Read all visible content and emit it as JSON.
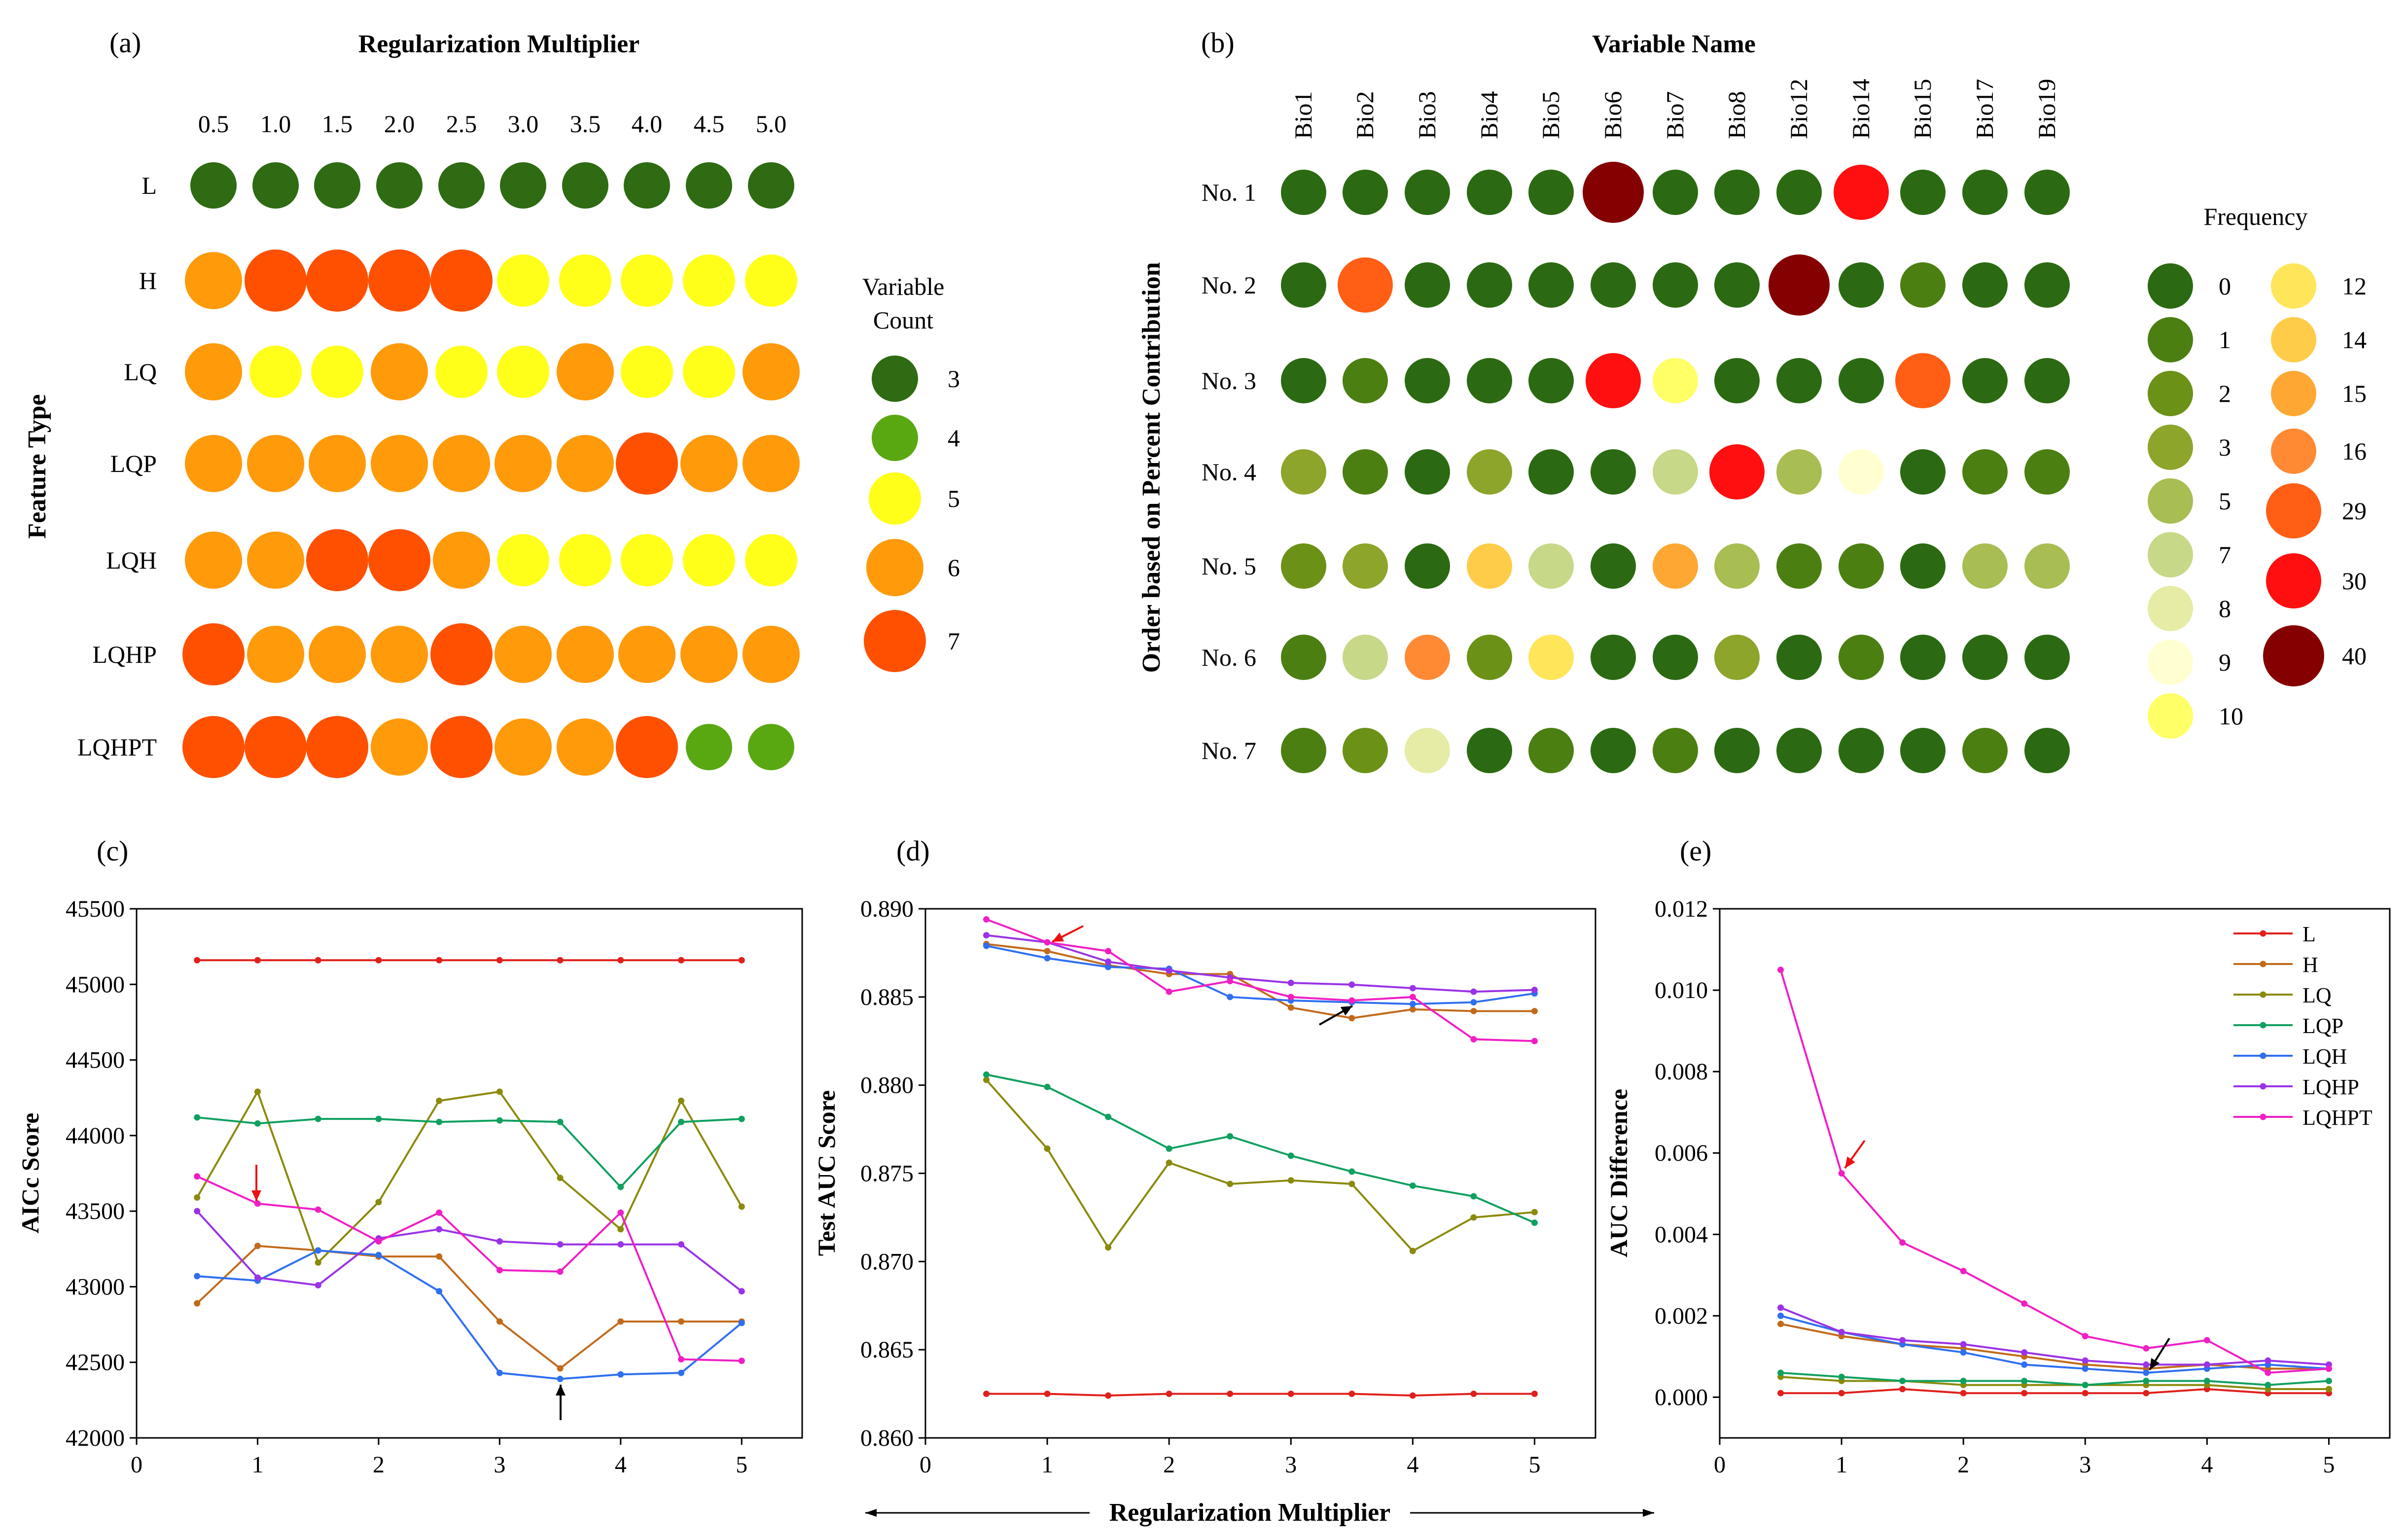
{
  "colors": {
    "count": {
      "3": "#2e6b12",
      "4": "#59a812",
      "5": "#ffff1a",
      "6": "#ff9a0a",
      "7": "#ff5000"
    },
    "freq": {
      "0": "#2b6a12",
      "1": "#4c7f12",
      "2": "#6b9117",
      "3": "#8ca52a",
      "5": "#a8bd52",
      "7": "#c7d888",
      "8": "#e6eba6",
      "9": "#ffffd2",
      "10": "#ffff66",
      "12": "#ffe55a",
      "14": "#ffcc4a",
      "15": "#ffa733",
      "16": "#ff8a33",
      "29": "#ff5e14",
      "30": "#ff0f0f",
      "40": "#850000"
    },
    "series": {
      "L": "#e0201c",
      "H": "#c26a1b",
      "LQ": "#8a8a0c",
      "LQP": "#10a060",
      "LQH": "#2f6ff0",
      "LQHP": "#9a33e6",
      "LQHPT": "#f01fc4"
    },
    "arrow_red": "#ee1111",
    "arrow_black": "#000000"
  },
  "chart_data": [
    {
      "panel": "(a)",
      "type": "bubble-matrix",
      "title": "Regularization Multiplier",
      "ylabel": "Feature Type",
      "columns": [
        "0.5",
        "1.0",
        "1.5",
        "2.0",
        "2.5",
        "3.0",
        "3.5",
        "4.0",
        "4.5",
        "5.0"
      ],
      "rows": [
        "L",
        "H",
        "LQ",
        "LQP",
        "LQH",
        "LQHP",
        "LQHPT"
      ],
      "values": [
        [
          3,
          3,
          3,
          3,
          3,
          3,
          3,
          3,
          3,
          3
        ],
        [
          6,
          7,
          7,
          7,
          7,
          5,
          5,
          5,
          5,
          5
        ],
        [
          6,
          5,
          5,
          6,
          5,
          5,
          6,
          5,
          5,
          6
        ],
        [
          6,
          6,
          6,
          6,
          6,
          6,
          6,
          7,
          6,
          6
        ],
        [
          6,
          6,
          7,
          7,
          6,
          5,
          5,
          5,
          5,
          5
        ],
        [
          7,
          6,
          6,
          6,
          7,
          6,
          6,
          6,
          6,
          6
        ],
        [
          7,
          7,
          7,
          6,
          7,
          6,
          6,
          7,
          4,
          4
        ]
      ],
      "legend_title": [
        "Variable",
        "Count"
      ],
      "legend": [
        3,
        4,
        5,
        6,
        7
      ]
    },
    {
      "panel": "(b)",
      "type": "bubble-matrix",
      "title": "Variable Name",
      "ylabel": "Order based on Percent Contribution",
      "columns": [
        "Bio1",
        "Bio2",
        "Bio3",
        "Bio4",
        "Bio5",
        "Bio6",
        "Bio7",
        "Bio8",
        "Bio12",
        "Bio14",
        "Bio15",
        "Bio17",
        "Bio19"
      ],
      "rows": [
        "No. 1",
        "No. 2",
        "No. 3",
        "No. 4",
        "No. 5",
        "No. 6",
        "No. 7"
      ],
      "values": [
        [
          0,
          0,
          0,
          0,
          0,
          40,
          0,
          0,
          0,
          30,
          0,
          0,
          0
        ],
        [
          0,
          29,
          0,
          0,
          0,
          0,
          0,
          0,
          40,
          0,
          1,
          0,
          0
        ],
        [
          0,
          1,
          0,
          0,
          0,
          30,
          10,
          0,
          0,
          0,
          29,
          0,
          0
        ],
        [
          3,
          1,
          0,
          3,
          0,
          0,
          7,
          30,
          5,
          9,
          0,
          1,
          1
        ],
        [
          2,
          3,
          0,
          14,
          7,
          0,
          15,
          5,
          1,
          1,
          0,
          5,
          5
        ],
        [
          1,
          7,
          16,
          2,
          12,
          0,
          0,
          3,
          0,
          1,
          0,
          0,
          0
        ],
        [
          1,
          2,
          8,
          0,
          1,
          0,
          1,
          0,
          0,
          0,
          0,
          1,
          0
        ]
      ],
      "legend_title": "Frequency",
      "legend": [
        0,
        1,
        2,
        3,
        5,
        7,
        8,
        9,
        10,
        12,
        14,
        15,
        16,
        29,
        30,
        40
      ]
    },
    {
      "panel": "(c)",
      "type": "line",
      "ylabel": "AICc Score",
      "x": [
        0.5,
        1,
        1.5,
        2,
        2.5,
        3,
        3.5,
        4,
        4.5,
        5
      ],
      "xlim": [
        0,
        5.5
      ],
      "xticks": [
        "0",
        "1",
        "2",
        "3",
        "4",
        "5"
      ],
      "ylim": [
        42000,
        45500
      ],
      "yticks": [
        "42000",
        "42500",
        "43000",
        "43500",
        "44000",
        "44500",
        "45000",
        "45500"
      ],
      "series": [
        {
          "name": "L",
          "values": [
            45160,
            45160,
            45160,
            45160,
            45160,
            45160,
            45160,
            45160,
            45160,
            45160
          ]
        },
        {
          "name": "H",
          "values": [
            42890,
            43270,
            43240,
            43200,
            43200,
            42770,
            42460,
            42770,
            42770,
            42770
          ]
        },
        {
          "name": "LQ",
          "values": [
            43590,
            44290,
            43160,
            43560,
            44230,
            44290,
            43720,
            43380,
            44230,
            43530
          ]
        },
        {
          "name": "LQP",
          "values": [
            44120,
            44080,
            44110,
            44110,
            44090,
            44100,
            44090,
            43660,
            44090,
            44110
          ]
        },
        {
          "name": "LQH",
          "values": [
            43070,
            43040,
            43240,
            43210,
            42970,
            42430,
            42390,
            42420,
            42430,
            42760
          ]
        },
        {
          "name": "LQHP",
          "values": [
            43500,
            43060,
            43010,
            43320,
            43380,
            43300,
            43280,
            43280,
            43280,
            42970
          ]
        },
        {
          "name": "LQHPT",
          "values": [
            43730,
            43550,
            43510,
            43300,
            43490,
            43110,
            43100,
            43490,
            42520,
            42510
          ]
        }
      ],
      "annotations": [
        {
          "color": "red",
          "direction": "down",
          "x": 1,
          "y": 43550
        },
        {
          "color": "black",
          "direction": "up",
          "x": 3.5,
          "y": 42390
        }
      ]
    },
    {
      "panel": "(d)",
      "type": "line",
      "ylabel": "Test AUC Score",
      "x": [
        0.5,
        1,
        1.5,
        2,
        2.5,
        3,
        3.5,
        4,
        4.5,
        5
      ],
      "xlim": [
        0,
        5.5
      ],
      "xticks": [
        "0",
        "1",
        "2",
        "3",
        "4",
        "5"
      ],
      "ylim": [
        0.86,
        0.89
      ],
      "yticks": [
        "0.860",
        "0.865",
        "0.870",
        "0.875",
        "0.880",
        "0.885",
        "0.890"
      ],
      "series": [
        {
          "name": "L",
          "values": [
            0.8625,
            0.8625,
            0.8624,
            0.8625,
            0.8625,
            0.8625,
            0.8625,
            0.8624,
            0.8625,
            0.8625
          ]
        },
        {
          "name": "H",
          "values": [
            0.888,
            0.8876,
            0.8868,
            0.8863,
            0.8863,
            0.8844,
            0.8838,
            0.8843,
            0.8842,
            0.8842
          ]
        },
        {
          "name": "LQ",
          "values": [
            0.8803,
            0.8764,
            0.8708,
            0.8756,
            0.8744,
            0.8746,
            0.8744,
            0.8706,
            0.8725,
            0.8728
          ]
        },
        {
          "name": "LQP",
          "values": [
            0.8806,
            0.8799,
            0.8782,
            0.8764,
            0.8771,
            0.876,
            0.8751,
            0.8743,
            0.8737,
            0.8722
          ]
        },
        {
          "name": "LQH",
          "values": [
            0.8879,
            0.8872,
            0.8867,
            0.8866,
            0.885,
            0.8848,
            0.8847,
            0.8846,
            0.8847,
            0.8852
          ]
        },
        {
          "name": "LQHP",
          "values": [
            0.8885,
            0.8881,
            0.887,
            0.8865,
            0.8861,
            0.8858,
            0.8857,
            0.8855,
            0.8853,
            0.8854
          ]
        },
        {
          "name": "LQHPT",
          "values": [
            0.8894,
            0.8881,
            0.8876,
            0.8853,
            0.8859,
            0.885,
            0.8848,
            0.885,
            0.8826,
            0.8825
          ]
        }
      ],
      "annotations": [
        {
          "color": "red",
          "direction": "down-left",
          "x": 1,
          "y": 0.8882
        },
        {
          "color": "black",
          "direction": "up-right",
          "x": 3.5,
          "y": 0.8848
        }
      ]
    },
    {
      "panel": "(e)",
      "type": "line",
      "ylabel": "AUC Difference",
      "x": [
        0.5,
        1,
        1.5,
        2,
        2.5,
        3,
        3.5,
        4,
        4.5,
        5
      ],
      "xlim": [
        0,
        5.5
      ],
      "xticks": [
        "0",
        "1",
        "2",
        "3",
        "4",
        "5"
      ],
      "ylim": [
        -0.001,
        0.012
      ],
      "yticks": [
        "0.000",
        "0.002",
        "0.004",
        "0.006",
        "0.008",
        "0.010",
        "0.012"
      ],
      "legend_position": "top-right",
      "series": [
        {
          "name": "L",
          "values": [
            0.0001,
            0.0001,
            0.0002,
            0.0001,
            0.0001,
            0.0001,
            0.0001,
            0.0002,
            0.0001,
            0.0001
          ]
        },
        {
          "name": "H",
          "values": [
            0.0018,
            0.0015,
            0.0013,
            0.0012,
            0.001,
            0.0008,
            0.0007,
            0.0008,
            0.0007,
            0.0007
          ]
        },
        {
          "name": "LQ",
          "values": [
            0.0005,
            0.0004,
            0.0004,
            0.0003,
            0.0003,
            0.0003,
            0.0003,
            0.0003,
            0.0002,
            0.0002
          ]
        },
        {
          "name": "LQP",
          "values": [
            0.0006,
            0.0005,
            0.0004,
            0.0004,
            0.0004,
            0.0003,
            0.0004,
            0.0004,
            0.0003,
            0.0004
          ]
        },
        {
          "name": "LQH",
          "values": [
            0.002,
            0.0016,
            0.0013,
            0.0011,
            0.0008,
            0.0007,
            0.0006,
            0.0007,
            0.0008,
            0.0007
          ]
        },
        {
          "name": "LQHP",
          "values": [
            0.0022,
            0.0016,
            0.0014,
            0.0013,
            0.0011,
            0.0009,
            0.0008,
            0.0008,
            0.0009,
            0.0008
          ]
        },
        {
          "name": "LQHPT",
          "values": [
            0.0105,
            0.0055,
            0.0038,
            0.0031,
            0.0023,
            0.0015,
            0.0012,
            0.0014,
            0.0006,
            0.0007
          ]
        }
      ],
      "annotations": [
        {
          "color": "red",
          "direction": "down-left",
          "x": 1,
          "y": 0.0055
        },
        {
          "color": "black",
          "direction": "down-left",
          "x": 3.5,
          "y": 0.0007
        }
      ]
    }
  ],
  "shared_xlabel": "Regularization Multiplier"
}
